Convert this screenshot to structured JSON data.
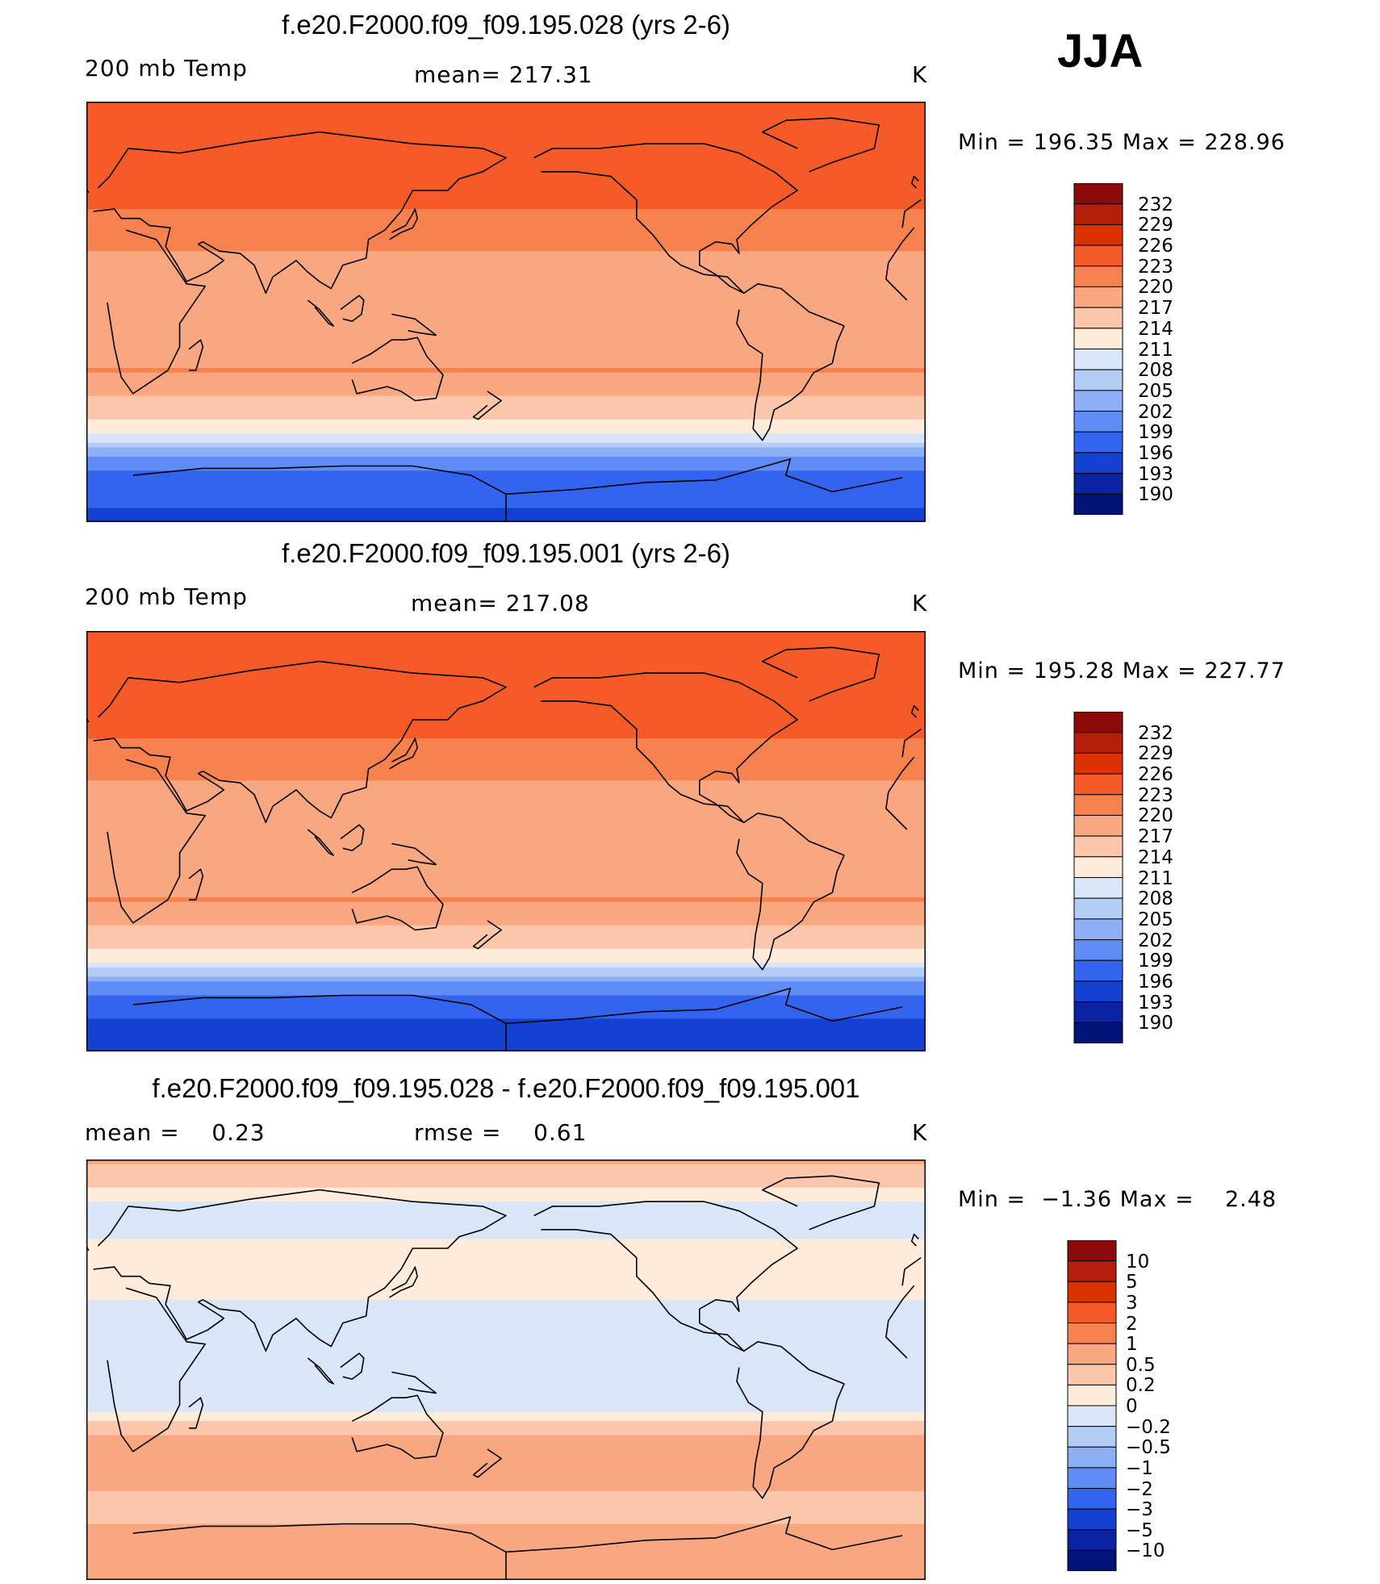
{
  "season": "JJA",
  "panels": [
    {
      "title": "f.e20.F2000.f09_f09.195.028 (yrs 2-6)",
      "left_label": "200 mb Temp",
      "center_label": "mean= 217.31",
      "units": "K",
      "min_max": "Min = 196.35 Max = 228.96"
    },
    {
      "title": "f.e20.F2000.f09_f09.195.001 (yrs 2-6)",
      "left_label": "200 mb Temp",
      "center_label": "mean= 217.08",
      "units": "K",
      "min_max": "Min = 195.28 Max = 227.77"
    },
    {
      "title": "f.e20.F2000.f09_f09.195.028 - f.e20.F2000.f09_f09.195.001",
      "left_label": "mean =    0.23",
      "center_label": "rmse =    0.61",
      "units": "K",
      "min_max": "Min =  −1.36 Max =    2.48"
    }
  ],
  "chart_data": [
    {
      "type": "heatmap",
      "title": "f.e20.F2000.f09_f09.195.028 (yrs 2-6)",
      "field": "200 mb Temp",
      "units": "K",
      "mean": 217.31,
      "min": 196.35,
      "max": 228.96,
      "contour_levels": [
        232,
        229,
        226,
        223,
        220,
        217,
        214,
        211,
        208,
        205,
        202,
        199,
        196,
        193,
        190
      ],
      "colorbar_colors": [
        "#8c0a0a",
        "#b41e0a",
        "#dc3200",
        "#f55a28",
        "#f7824f",
        "#f9a781",
        "#fcc6ab",
        "#feebd9",
        "#d9e6f7",
        "#b4cdf5",
        "#8caff5",
        "#5f8cf5",
        "#3264f0",
        "#1441d2",
        "#0a23a0",
        "#001478"
      ],
      "latitude_bands": [
        {
          "lat": 90,
          "value": 226
        },
        {
          "lat": 70,
          "value": 223
        },
        {
          "lat": 45,
          "value": 223
        },
        {
          "lat": 20,
          "value": 219
        },
        {
          "lat": 0,
          "value": 218
        },
        {
          "lat": -25,
          "value": 220
        },
        {
          "lat": -40,
          "value": 216
        },
        {
          "lat": -50,
          "value": 212
        },
        {
          "lat": -55,
          "value": 208
        },
        {
          "lat": -60,
          "value": 203
        },
        {
          "lat": -70,
          "value": 198
        },
        {
          "lat": -90,
          "value": 195
        }
      ]
    },
    {
      "type": "heatmap",
      "title": "f.e20.F2000.f09_f09.195.001 (yrs 2-6)",
      "field": "200 mb Temp",
      "units": "K",
      "mean": 217.08,
      "min": 195.28,
      "max": 227.77,
      "contour_levels": [
        232,
        229,
        226,
        223,
        220,
        217,
        214,
        211,
        208,
        205,
        202,
        199,
        196,
        193,
        190
      ],
      "colorbar_colors": [
        "#8c0a0a",
        "#b41e0a",
        "#dc3200",
        "#f55a28",
        "#f7824f",
        "#f9a781",
        "#fcc6ab",
        "#feebd9",
        "#d9e6f7",
        "#b4cdf5",
        "#8caff5",
        "#5f8cf5",
        "#3264f0",
        "#1441d2",
        "#0a23a0",
        "#001478"
      ],
      "latitude_bands": [
        {
          "lat": 90,
          "value": 226
        },
        {
          "lat": 70,
          "value": 223
        },
        {
          "lat": 45,
          "value": 223
        },
        {
          "lat": 20,
          "value": 219
        },
        {
          "lat": 0,
          "value": 218
        },
        {
          "lat": -25,
          "value": 220
        },
        {
          "lat": -40,
          "value": 216
        },
        {
          "lat": -50,
          "value": 212
        },
        {
          "lat": -55,
          "value": 207
        },
        {
          "lat": -60,
          "value": 202
        },
        {
          "lat": -70,
          "value": 197
        },
        {
          "lat": -90,
          "value": 194
        }
      ]
    },
    {
      "type": "heatmap",
      "title": "f.e20.F2000.f09_f09.195.028 - f.e20.F2000.f09_f09.195.001",
      "units": "K",
      "mean": 0.23,
      "rmse": 0.61,
      "min": -1.36,
      "max": 2.48,
      "contour_levels": [
        "10",
        "5",
        "3",
        "2",
        "1",
        "0.5",
        "0.2",
        "0",
        "−0.2",
        "−0.5",
        "−1",
        "−2",
        "−3",
        "−5",
        "−10"
      ],
      "colorbar_colors": [
        "#8c0a0a",
        "#b41e0a",
        "#dc3200",
        "#f55a28",
        "#f7824f",
        "#f9a781",
        "#fcc6ab",
        "#feebd9",
        "#d9e6f7",
        "#b4cdf5",
        "#8caff5",
        "#5f8cf5",
        "#3264f0",
        "#1441d2",
        "#0a23a0",
        "#001478"
      ],
      "latitude_bands": [
        {
          "lat": 90,
          "value": 0.6
        },
        {
          "lat": 70,
          "value": -0.1
        },
        {
          "lat": 40,
          "value": 0.1
        },
        {
          "lat": 20,
          "value": -0.1
        },
        {
          "lat": 0,
          "value": -0.1
        },
        {
          "lat": -15,
          "value": -0.15
        },
        {
          "lat": -30,
          "value": 0.6
        },
        {
          "lat": -45,
          "value": 0.7
        },
        {
          "lat": -60,
          "value": 0.3
        },
        {
          "lat": -75,
          "value": 0.8
        },
        {
          "lat": -90,
          "value": 0.6
        }
      ]
    }
  ]
}
